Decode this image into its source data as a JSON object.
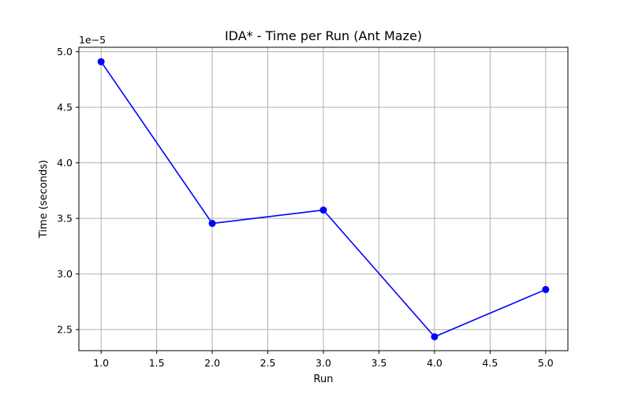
{
  "chart_data": {
    "type": "line",
    "title": "IDA* - Time per Run (Ant Maze)",
    "xlabel": "Run",
    "ylabel": "Time (seconds)",
    "y_offset_label": "1e−5",
    "x": [
      1,
      2,
      3,
      4,
      5
    ],
    "series": [
      {
        "values": [
          4.91e-05,
          3.455e-05,
          3.575e-05,
          2.435e-05,
          2.86e-05
        ],
        "color": "#0000ff",
        "marker": "circle"
      }
    ],
    "xlim": [
      0.8,
      5.2
    ],
    "ylim": [
      2.31e-05,
      5.04e-05
    ],
    "xticks": [
      1.0,
      1.5,
      2.0,
      2.5,
      3.0,
      3.5,
      4.0,
      4.5,
      5.0
    ],
    "xtick_labels": [
      "1.0",
      "1.5",
      "2.0",
      "2.5",
      "3.0",
      "3.5",
      "4.0",
      "4.5",
      "5.0"
    ],
    "yticks": [
      2.5e-05,
      3e-05,
      3.5e-05,
      4e-05,
      4.5e-05,
      5e-05
    ],
    "ytick_labels": [
      "2.5",
      "3.0",
      "3.5",
      "4.0",
      "4.5",
      "5.0"
    ],
    "grid": true,
    "legend": "none"
  }
}
